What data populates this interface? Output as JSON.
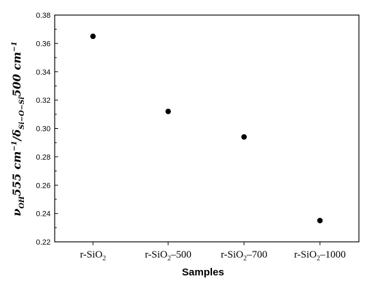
{
  "chart_data": {
    "type": "scatter",
    "categories": [
      "r-SiO2",
      "r-SiO2–500",
      "r-SiO2–700",
      "r-SiO2–1000"
    ],
    "category_labels": [
      {
        "base": "r-SiO",
        "sub": "2",
        "suffix": ""
      },
      {
        "base": "r-SiO",
        "sub": "2",
        "suffix": "–500"
      },
      {
        "base": "r-SiO",
        "sub": "2",
        "suffix": "–700"
      },
      {
        "base": "r-SiO",
        "sub": "2",
        "suffix": "–1000"
      }
    ],
    "values": [
      0.365,
      0.312,
      0.294,
      0.235
    ],
    "xlabel": "Samples",
    "ylabel": "ν_OH 555 cm⁻¹/δ_Si−O−Si 500 cm⁻¹",
    "ylim": [
      0.22,
      0.38
    ],
    "yticks": [
      "0.22",
      "0.24",
      "0.26",
      "0.28",
      "0.30",
      "0.32",
      "0.34",
      "0.36",
      "0.38"
    ],
    "grid": false,
    "marker_color": "#000000"
  }
}
